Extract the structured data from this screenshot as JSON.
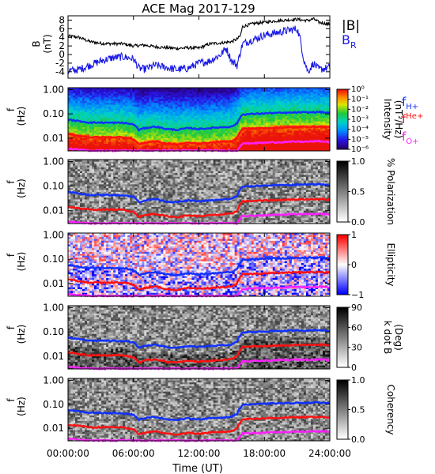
{
  "title": "ACE Mag 2017-129",
  "time_axis": {
    "label": "Time (UT)",
    "range_hours": [
      0,
      24
    ],
    "tick_hours": [
      0,
      6,
      12,
      18,
      24
    ],
    "tick_labels": [
      "00:00:00",
      "06:00:00",
      "12:00:00",
      "18:00:00",
      "24:00:00"
    ]
  },
  "freq_axis": {
    "scale": "log",
    "range": [
      0.003,
      1.2
    ],
    "ticks": [
      1.0,
      0.1,
      0.01
    ],
    "tick_labels": [
      "1.00",
      "0.10",
      "0.01"
    ]
  },
  "colors": {
    "B_total": "#000000",
    "B_R": "#1a1ae6",
    "f_H": "#1030ff",
    "f_He": "#ff1010",
    "f_O": "#ff20ff"
  },
  "chart_data": [
    {
      "id": "mag",
      "type": "line",
      "ylabel": "B",
      "yunit": "(nT)",
      "ylim": [
        -5.5,
        9
      ],
      "yticks": [
        -4,
        -2,
        0,
        2,
        4,
        6,
        8
      ],
      "legend": [
        {
          "label": "|B|",
          "color": "#000000"
        },
        {
          "label": "B",
          "sub": "R",
          "color": "#1a1ae6"
        }
      ],
      "series": [
        {
          "name": "|B|",
          "x": [
            0,
            1,
            2,
            3,
            4,
            5,
            6,
            7,
            8,
            9,
            10,
            11,
            12,
            13,
            14,
            15,
            15.5,
            15.8,
            16,
            17,
            18,
            19,
            20,
            21,
            21.5,
            22,
            22.5,
            23,
            24
          ],
          "y": [
            4.3,
            4.0,
            3.0,
            2.6,
            2.5,
            2.5,
            2.0,
            2.2,
            1.8,
            1.6,
            1.4,
            1.6,
            1.5,
            2.5,
            2.7,
            3.0,
            3.6,
            4.3,
            6.5,
            7.2,
            7.5,
            7.8,
            8.0,
            8.2,
            8.0,
            7.9,
            8.3,
            7.5,
            7.0
          ]
        },
        {
          "name": "B_R",
          "x": [
            0,
            1,
            2,
            3,
            4,
            5,
            6,
            6.5,
            7,
            8,
            9,
            10,
            11,
            12,
            13,
            14,
            14.5,
            15,
            15.5,
            16,
            17,
            18,
            19,
            20,
            21,
            21.3,
            21.6,
            22,
            22.5,
            23,
            24
          ],
          "y": [
            -3.8,
            -3.5,
            -2.5,
            -1.5,
            -0.8,
            -0.5,
            -1.0,
            -3.2,
            -3.4,
            -2.5,
            -3.0,
            -3.5,
            -3.2,
            -2.0,
            -1.5,
            0.0,
            1.5,
            -1.5,
            -2.5,
            2.5,
            3.5,
            4.5,
            5.0,
            5.5,
            6.0,
            3.5,
            -1.0,
            -4.0,
            -2.0,
            -3.5,
            -3.0
          ]
        }
      ]
    },
    {
      "id": "intensity",
      "type": "heatmap",
      "ylabel": "f",
      "yunit": "(Hz)",
      "colorbar": {
        "label": "Intensity",
        "unit": "(nT²/Hz)",
        "palette": "rainbow",
        "tick_labels": [
          "10⁰",
          "10⁻¹",
          "10⁻²",
          "10⁻³",
          "10⁻⁴",
          "10⁻⁵",
          "10⁻⁶"
        ]
      },
      "legend": [
        {
          "label": "f",
          "sub": "H+",
          "color": "#1030ff"
        },
        {
          "label": "f",
          "sup": "He+",
          "color": "#ff1010"
        },
        {
          "label": "f",
          "sub": "O+",
          "color": "#ff20ff"
        }
      ]
    },
    {
      "id": "polarization",
      "type": "heatmap",
      "ylabel": "f",
      "yunit": "(Hz)",
      "colorbar": {
        "label": "% Polarization",
        "palette": "gray",
        "tick_labels": [
          "1.0",
          "0.5",
          "0.0"
        ]
      }
    },
    {
      "id": "ellipticity",
      "type": "heatmap",
      "ylabel": "f",
      "yunit": "(Hz)",
      "colorbar": {
        "label": "Ellipticity",
        "palette": "redblue",
        "tick_labels": [
          "1",
          "0",
          "−1"
        ]
      }
    },
    {
      "id": "kdotb",
      "type": "heatmap",
      "ylabel": "f",
      "yunit": "(Hz)",
      "colorbar": {
        "label": "k dot B",
        "unit": "(Deg)",
        "palette": "gray",
        "tick_labels": [
          "90",
          "60",
          "30",
          "0"
        ]
      }
    },
    {
      "id": "coherency",
      "type": "heatmap",
      "ylabel": "f",
      "yunit": "(Hz)",
      "colorbar": {
        "label": "Coherency",
        "palette": "gray",
        "tick_labels": [
          "1.0",
          "0.5",
          "0.0"
        ]
      }
    }
  ],
  "gyrofrequency_lines": [
    {
      "name": "f_H+",
      "color": "#1030ff",
      "x": [
        0,
        1,
        2,
        3,
        4,
        5,
        6,
        6.5,
        7,
        8,
        9,
        10,
        11,
        12,
        13,
        14,
        15,
        15.5,
        16,
        17,
        18,
        19,
        20,
        21,
        22,
        23,
        24
      ],
      "y": [
        0.058,
        0.05,
        0.044,
        0.044,
        0.043,
        0.043,
        0.037,
        0.022,
        0.026,
        0.03,
        0.024,
        0.022,
        0.026,
        0.024,
        0.026,
        0.028,
        0.03,
        0.04,
        0.095,
        0.1,
        0.105,
        0.11,
        0.11,
        0.115,
        0.115,
        0.12,
        0.11
      ]
    },
    {
      "name": "f_He+",
      "color": "#ff1010",
      "x": [
        0,
        1,
        2,
        3,
        4,
        5,
        6,
        6.5,
        7,
        8,
        9,
        10,
        11,
        12,
        13,
        14,
        15,
        15.5,
        16,
        17,
        18,
        19,
        20,
        21,
        22,
        23,
        24
      ],
      "y": [
        0.0145,
        0.0125,
        0.011,
        0.011,
        0.011,
        0.011,
        0.009,
        0.0055,
        0.0065,
        0.0075,
        0.006,
        0.0055,
        0.0065,
        0.006,
        0.0065,
        0.007,
        0.0075,
        0.01,
        0.024,
        0.025,
        0.026,
        0.027,
        0.028,
        0.029,
        0.029,
        0.03,
        0.028
      ]
    },
    {
      "name": "f_O+",
      "color": "#ff20ff",
      "x": [
        0,
        1,
        2,
        3,
        4,
        5,
        6,
        6.5,
        7,
        8,
        9,
        10,
        11,
        12,
        13,
        14,
        15,
        15.5,
        16,
        17,
        18,
        19,
        20,
        21,
        22,
        23,
        24
      ],
      "y": [
        0.0037,
        0.0033,
        0.0031,
        0.0031,
        0.0031,
        0.0031,
        0.0031,
        0.0031,
        0.0031,
        0.0031,
        0.0031,
        0.0031,
        0.0031,
        0.0031,
        0.0031,
        0.0031,
        0.0031,
        0.0031,
        0.006,
        0.0063,
        0.0065,
        0.0068,
        0.007,
        0.0072,
        0.0072,
        0.0075,
        0.007
      ]
    }
  ]
}
